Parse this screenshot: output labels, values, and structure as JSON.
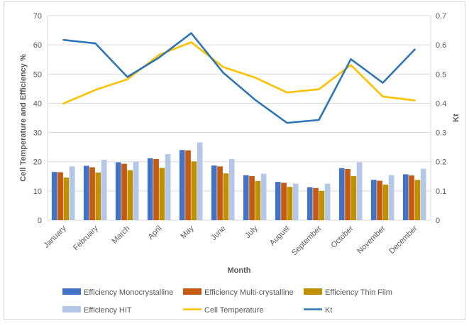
{
  "chart_data": {
    "type": "bar",
    "categories": [
      "January",
      "February",
      "March",
      "April",
      "May",
      "June",
      "July",
      "August",
      "September",
      "October",
      "November",
      "December"
    ],
    "xlabel": "Month",
    "ylabel": "Cell Temperature and Efficiency %",
    "y2label": "Kt",
    "ylim": [
      0,
      70
    ],
    "y2lim": [
      0,
      0.7
    ],
    "yticks": [
      "0",
      "10",
      "20",
      "30",
      "40",
      "50",
      "60",
      "70"
    ],
    "y2ticks": [
      "0",
      "0.1",
      "0.2",
      "0.3",
      "0.4",
      "0.5",
      "0.6",
      "0.7"
    ],
    "grid": true,
    "legend_position": "bottom",
    "series": [
      {
        "name": "Efficiency Monocrystalline",
        "kind": "bar",
        "axis": "left",
        "color": "#4472c4",
        "values": [
          16.5,
          18.6,
          19.8,
          21.2,
          24.0,
          18.7,
          15.4,
          13.1,
          11.3,
          17.8,
          13.8,
          15.7
        ]
      },
      {
        "name": "Efficiency Multi-crystalline",
        "kind": "bar",
        "axis": "left",
        "color": "#c55a11",
        "values": [
          16.4,
          18.1,
          19.3,
          20.9,
          23.9,
          18.4,
          15.1,
          12.8,
          11.0,
          17.5,
          13.5,
          15.3
        ]
      },
      {
        "name": "Efficiency Thin Film",
        "kind": "bar",
        "axis": "left",
        "color": "#bf9000",
        "values": [
          14.6,
          16.3,
          17.1,
          17.9,
          20.1,
          16.0,
          13.4,
          11.4,
          10.0,
          15.1,
          12.2,
          13.8
        ]
      },
      {
        "name": "Efficiency HIT",
        "kind": "bar",
        "axis": "left",
        "color": "#b4c7e7",
        "values": [
          18.4,
          20.7,
          20.0,
          22.6,
          26.6,
          20.9,
          15.9,
          12.5,
          12.5,
          19.8,
          15.4,
          17.6
        ]
      },
      {
        "name": "Cell Temperature",
        "kind": "line",
        "axis": "left",
        "color": "#ffc000",
        "values": [
          39.9,
          44.6,
          48.2,
          56.6,
          60.9,
          52.4,
          48.8,
          43.7,
          44.8,
          53.1,
          42.3,
          41.0
        ]
      },
      {
        "name": "Kt",
        "kind": "line",
        "axis": "right",
        "color": "#2e75b6",
        "values": [
          0.617,
          0.605,
          0.49,
          0.557,
          0.64,
          0.505,
          0.412,
          0.333,
          0.343,
          0.551,
          0.47,
          0.584
        ]
      }
    ]
  }
}
